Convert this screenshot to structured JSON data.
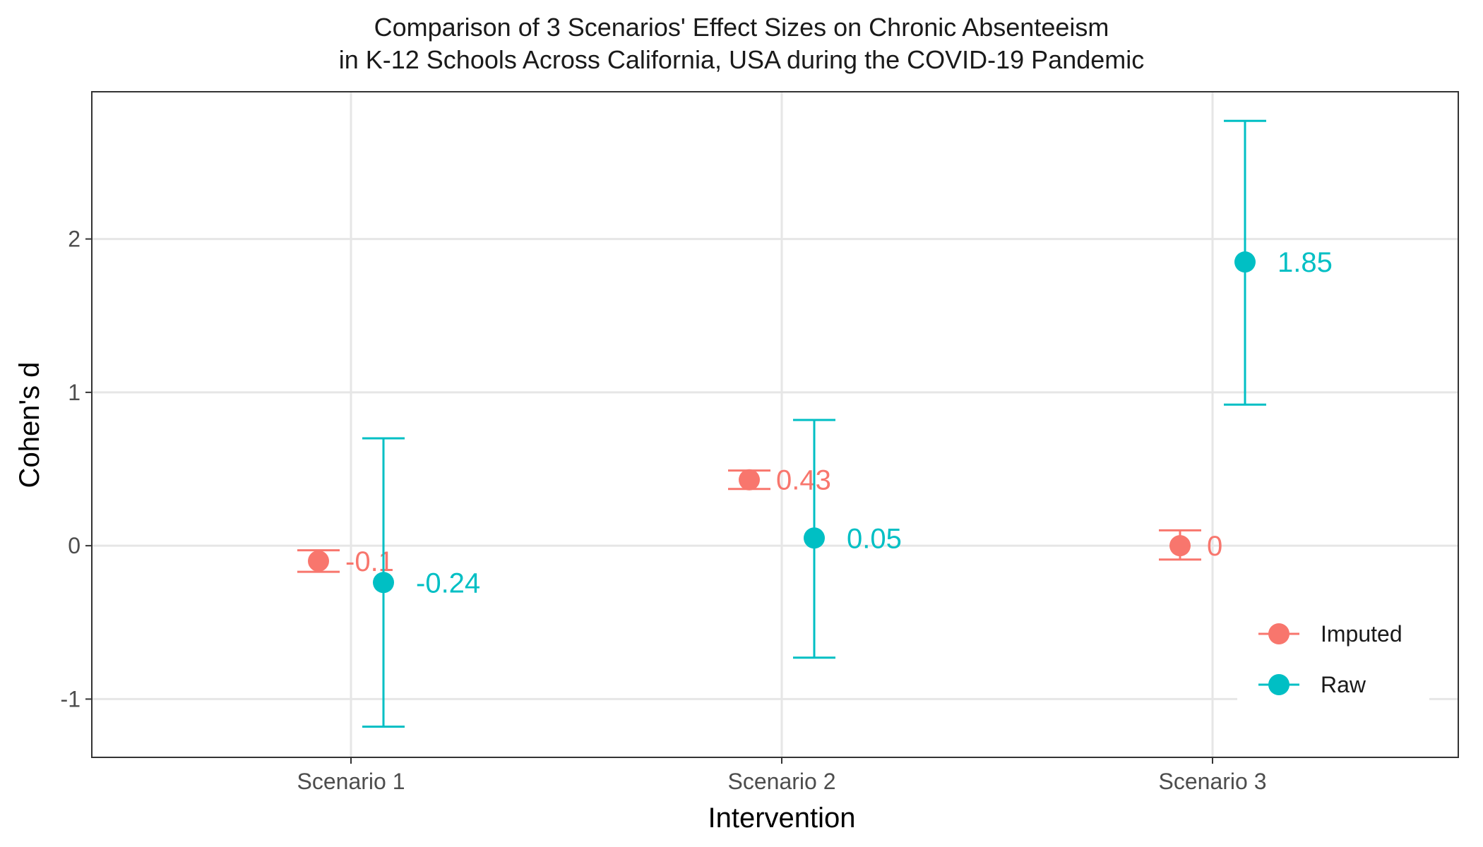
{
  "chart_data": {
    "type": "scatter",
    "title": "Comparison of 3 Scenarios' Effect Sizes on Chronic Absenteeism",
    "subtitle": "in K-12 Schools Across California, USA during the COVID-19 Pandemic",
    "xlabel": "Intervention",
    "ylabel": "Cohen's d",
    "categories": [
      "Scenario 1",
      "Scenario 2",
      "Scenario 3"
    ],
    "ylim": [
      -1.38,
      2.96
    ],
    "yticks": [
      -1,
      0,
      1,
      2
    ],
    "grid": true,
    "legend_position": "bottom-right",
    "series": [
      {
        "name": "Imputed",
        "color": "#F8766D",
        "values": [
          -0.1,
          0.43,
          0
        ],
        "lower": [
          -0.17,
          0.37,
          -0.09
        ],
        "upper": [
          -0.03,
          0.49,
          0.1
        ],
        "labels": [
          "-0.1",
          "0.43",
          "0"
        ]
      },
      {
        "name": "Raw",
        "color": "#00BFC4",
        "values": [
          -0.24,
          0.05,
          1.85
        ],
        "lower": [
          -1.18,
          -0.73,
          0.92
        ],
        "upper": [
          0.7,
          0.82,
          2.77
        ],
        "labels": [
          "-0.24",
          "0.05",
          "1.85"
        ]
      }
    ]
  }
}
